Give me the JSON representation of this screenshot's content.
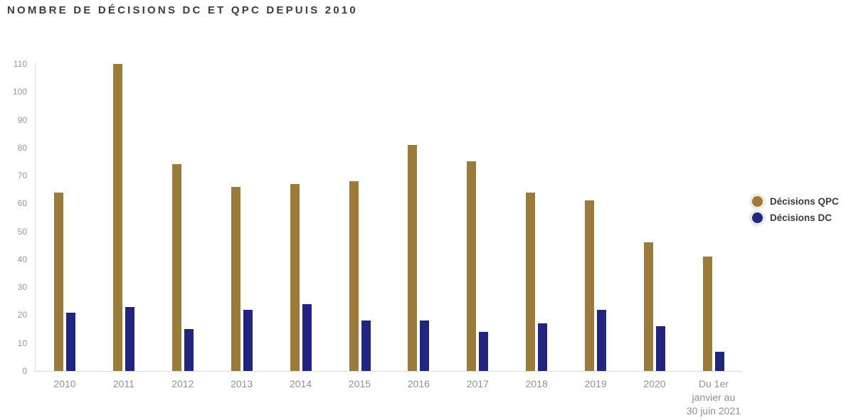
{
  "title": "NOMBRE DE DÉCISIONS DC ET QPC DEPUIS 2010",
  "chart_data": {
    "type": "bar",
    "title": "NOMBRE DE DÉCISIONS DC ET QPC DEPUIS 2010",
    "categories": [
      "2010",
      "2011",
      "2012",
      "2013",
      "2014",
      "2015",
      "2016",
      "2017",
      "2018",
      "2019",
      "2020",
      "Du 1er\njanvier au\n30 juin 2021"
    ],
    "series": [
      {
        "name": "Décisions QPC",
        "color": "#9a7b3c",
        "halo_color": "#f1ebdf",
        "values": [
          64,
          110,
          74,
          66,
          67,
          68,
          81,
          75,
          64,
          61,
          46,
          41
        ]
      },
      {
        "name": "Décisions DC",
        "color": "#22257d",
        "halo_color": "#e9e9f3",
        "values": [
          21,
          23,
          15,
          22,
          24,
          18,
          18,
          14,
          17,
          22,
          16,
          7
        ]
      }
    ],
    "xlabel": "",
    "ylabel": "",
    "ylim": [
      0,
      110
    ],
    "ytick_step": 10,
    "yticks": [
      0,
      10,
      20,
      30,
      40,
      50,
      60,
      70,
      80,
      90,
      100,
      110
    ],
    "grid": false,
    "legend_position": "right",
    "axis_line_color": "#dbdbdb",
    "tick_label_color": "#95979b",
    "title_color": "#3a3c3f"
  }
}
